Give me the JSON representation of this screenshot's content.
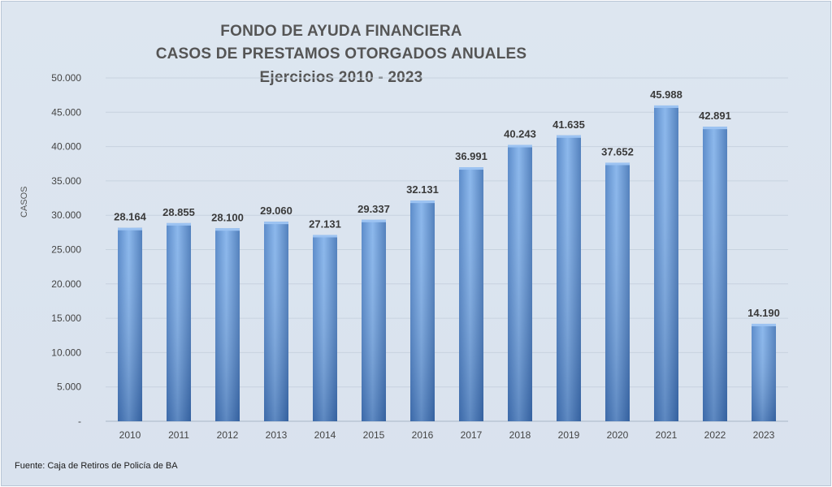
{
  "chart_data": {
    "type": "bar",
    "title": [
      "FONDO DE AYUDA FINANCIERA",
      "CASOS DE PRESTAMOS  OTORGADOS ANUALES",
      "Ejercicios  2010 - 2023"
    ],
    "ylabel": "CASOS",
    "xlabel": "",
    "ylim": [
      0,
      50000
    ],
    "yticks": [
      {
        "value": 0,
        "label": "-"
      },
      {
        "value": 5000,
        "label": "5.000"
      },
      {
        "value": 10000,
        "label": "10.000"
      },
      {
        "value": 15000,
        "label": "15.000"
      },
      {
        "value": 20000,
        "label": "20.000"
      },
      {
        "value": 25000,
        "label": "25.000"
      },
      {
        "value": 30000,
        "label": "30.000"
      },
      {
        "value": 35000,
        "label": "35.000"
      },
      {
        "value": 40000,
        "label": "40.000"
      },
      {
        "value": 45000,
        "label": "45.000"
      },
      {
        "value": 50000,
        "label": "50.000"
      }
    ],
    "categories": [
      "2010",
      "2011",
      "2012",
      "2013",
      "2014",
      "2015",
      "2016",
      "2017",
      "2018",
      "2019",
      "2020",
      "2021",
      "2022",
      "2023"
    ],
    "values": [
      28164,
      28855,
      28100,
      29060,
      27131,
      29337,
      32131,
      36991,
      40243,
      41635,
      37652,
      45988,
      42891,
      14190
    ],
    "data_labels": [
      "28.164",
      "28.855",
      "28.100",
      "29.060",
      "27.131",
      "29.337",
      "32.131",
      "36.991",
      "40.243",
      "41.635",
      "37.652",
      "45.988",
      "42.891",
      "14.190"
    ],
    "grid": true,
    "legend": "none",
    "bar_color": "#5b8fd0",
    "source": "Fuente: Caja de Retiros de Policía de BA"
  }
}
